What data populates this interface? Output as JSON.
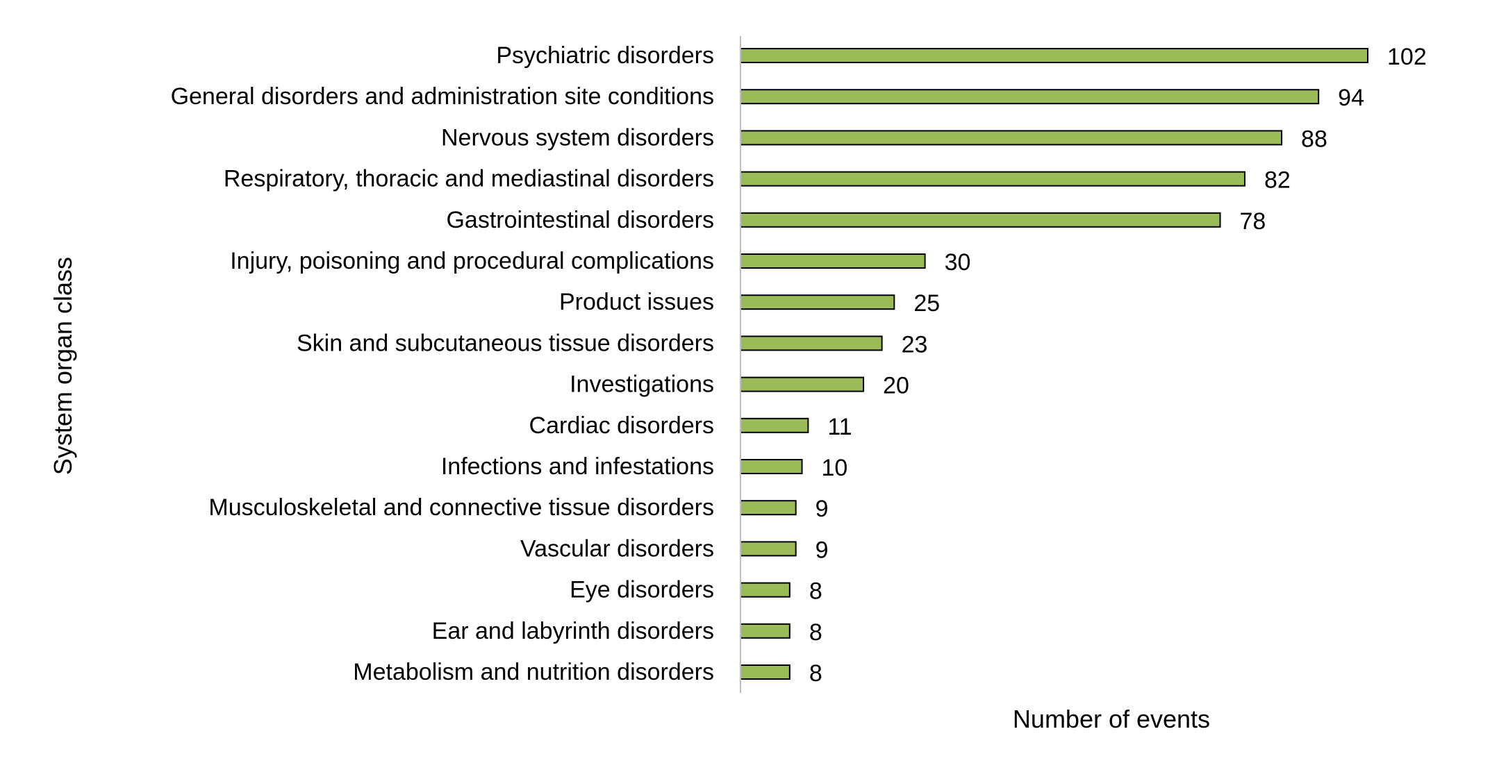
{
  "chart_data": {
    "type": "bar",
    "orientation": "horizontal",
    "title": "",
    "xlabel": "Number of events",
    "ylabel": "System organ class",
    "xlim": [
      0,
      102
    ],
    "grid": false,
    "legend": "none",
    "categories": [
      "Psychiatric disorders",
      "General disorders and administration site conditions",
      "Nervous system disorders",
      "Respiratory, thoracic and mediastinal disorders",
      "Gastrointestinal disorders",
      "Injury, poisoning and procedural complications",
      "Product issues",
      "Skin and subcutaneous tissue disorders",
      "Investigations",
      "Cardiac disorders",
      "Infections and infestations",
      "Musculoskeletal and connective tissue disorders",
      "Vascular disorders",
      "Eye disorders",
      "Ear and labyrinth disorders",
      "Metabolism and nutrition disorders"
    ],
    "values": [
      102,
      94,
      88,
      82,
      78,
      30,
      25,
      23,
      20,
      11,
      10,
      9,
      9,
      8,
      8,
      8
    ],
    "colors": {
      "bar_fill": "#9BBB59",
      "bar_stroke": "#000000",
      "axis_line": "#BFBFBF"
    }
  }
}
